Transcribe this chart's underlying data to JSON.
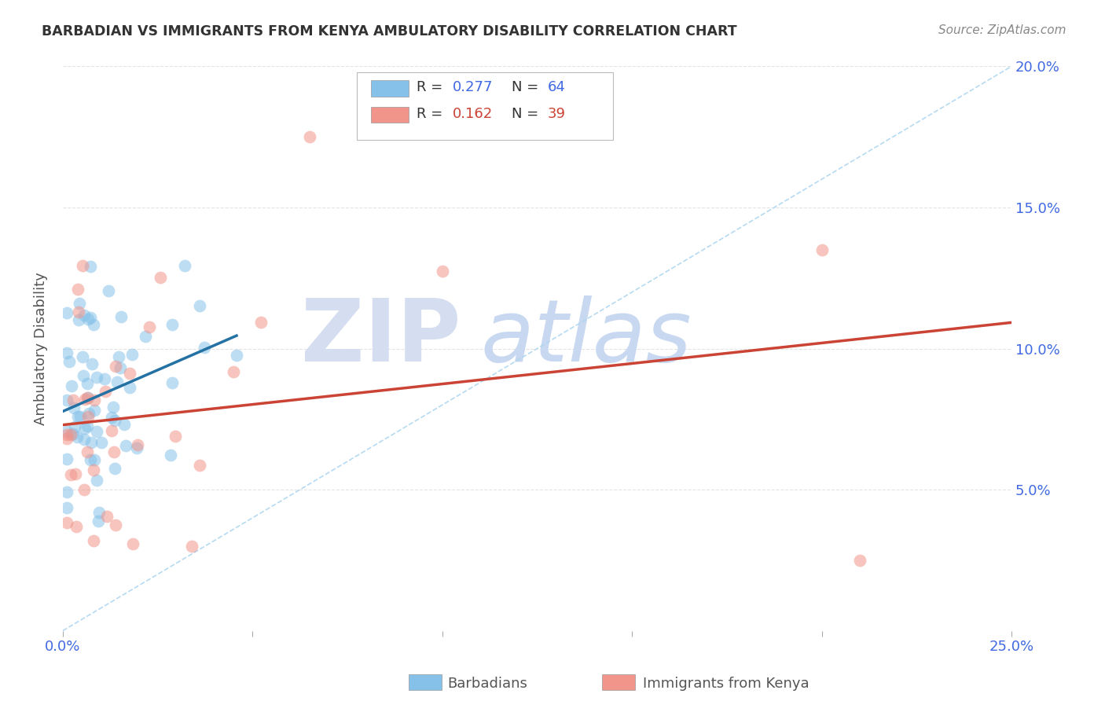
{
  "title": "BARBADIAN VS IMMIGRANTS FROM KENYA AMBULATORY DISABILITY CORRELATION CHART",
  "source": "Source: ZipAtlas.com",
  "ylabel": "Ambulatory Disability",
  "xlim": [
    0,
    0.25
  ],
  "ylim": [
    0,
    0.2
  ],
  "xticks": [
    0.0,
    0.05,
    0.1,
    0.15,
    0.2,
    0.25
  ],
  "xticklabels": [
    "0.0%",
    "",
    "",
    "",
    "",
    "25.0%"
  ],
  "yticks": [
    0.05,
    0.1,
    0.15,
    0.2
  ],
  "yticklabels": [
    "5.0%",
    "10.0%",
    "15.0%",
    "20.0%"
  ],
  "barbadian_color": "#85C1E9",
  "kenya_color": "#F1948A",
  "barbadian_line_color": "#2471A3",
  "kenya_line_color": "#CB4335",
  "dashed_line_color": "#AED6F1",
  "legend_label_1": "Barbadians",
  "legend_label_2": "Immigrants from Kenya",
  "R1": 0.277,
  "N1": 64,
  "R2": 0.162,
  "N2": 39,
  "background_color": "#ffffff",
  "grid_color": "#e0e0e0",
  "tick_color": "#4169E1",
  "title_color": "#333333",
  "source_color": "#888888",
  "ylabel_color": "#555555",
  "watermark_zip_color": "#d5ddf0",
  "watermark_atlas_color": "#c8d8f0"
}
